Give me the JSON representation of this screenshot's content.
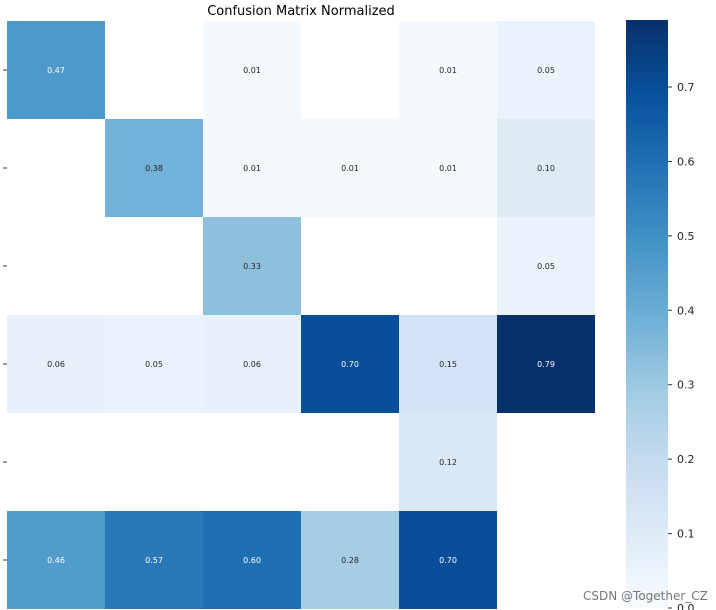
{
  "chart_data": {
    "type": "heatmap",
    "title": "Confusion Matrix Normalized",
    "xlabel": "",
    "ylabel": "",
    "rows": 6,
    "cols": 6,
    "values": [
      [
        0.47,
        null,
        0.01,
        null,
        0.01,
        0.05
      ],
      [
        null,
        0.38,
        0.01,
        0.01,
        0.01,
        0.1
      ],
      [
        null,
        null,
        0.33,
        null,
        null,
        0.05
      ],
      [
        0.06,
        0.05,
        0.06,
        0.7,
        0.15,
        0.79
      ],
      [
        null,
        null,
        null,
        null,
        0.12,
        null
      ],
      [
        0.46,
        0.57,
        0.6,
        0.28,
        0.7,
        null
      ]
    ],
    "colorbar": {
      "min": 0.0,
      "max": 0.79,
      "ticks": [
        0.0,
        0.1,
        0.2,
        0.3,
        0.4,
        0.5,
        0.6,
        0.7
      ],
      "tick_labels": [
        "0.0",
        "0.1",
        "0.2",
        "0.3",
        "0.4",
        "0.5",
        "0.6",
        "0.7"
      ],
      "colormap": "Blues"
    }
  },
  "watermark": "CSDN @Together_CZ"
}
